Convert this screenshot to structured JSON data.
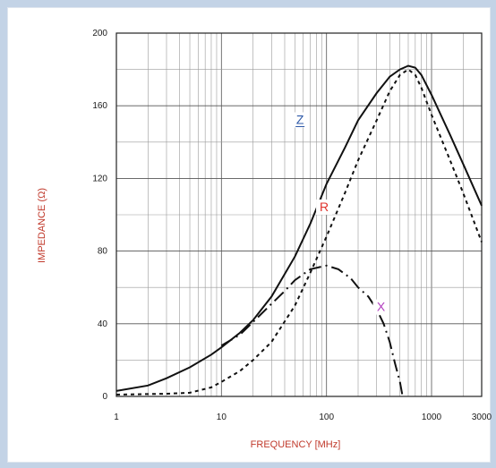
{
  "chart_data": {
    "type": "line",
    "xlabel": "FREQUENCY [MHz]",
    "ylabel": "IMPEDANCE (Ω)",
    "x_scale": "log",
    "xlim": [
      1,
      3000
    ],
    "ylim": [
      0,
      200
    ],
    "x_ticks": [
      "1",
      "10",
      "100",
      "1000",
      "3000"
    ],
    "y_ticks": [
      "0",
      "40",
      "80",
      "120",
      "160",
      "200"
    ],
    "grid": true,
    "series": [
      {
        "name": "Z",
        "style": "solid",
        "color": "#111111",
        "label_color": "#2f5aa8",
        "points": [
          [
            1,
            3
          ],
          [
            2,
            6
          ],
          [
            3,
            10
          ],
          [
            5,
            16
          ],
          [
            8,
            23
          ],
          [
            10,
            27
          ],
          [
            15,
            35
          ],
          [
            20,
            42
          ],
          [
            30,
            55
          ],
          [
            50,
            77
          ],
          [
            70,
            95
          ],
          [
            100,
            117
          ],
          [
            150,
            137
          ],
          [
            200,
            152
          ],
          [
            300,
            167
          ],
          [
            400,
            176
          ],
          [
            500,
            180
          ],
          [
            600,
            182
          ],
          [
            700,
            181
          ],
          [
            800,
            177
          ],
          [
            1000,
            166
          ],
          [
            1500,
            144
          ],
          [
            2000,
            128
          ],
          [
            3000,
            105
          ]
        ]
      },
      {
        "name": "R",
        "style": "dotted",
        "color": "#111111",
        "label_color": "#e0322b",
        "points": [
          [
            1,
            1
          ],
          [
            3,
            1.5
          ],
          [
            5,
            2
          ],
          [
            8,
            5
          ],
          [
            10,
            8
          ],
          [
            15,
            14
          ],
          [
            20,
            20
          ],
          [
            30,
            30
          ],
          [
            50,
            50
          ],
          [
            70,
            68
          ],
          [
            100,
            88
          ],
          [
            150,
            112
          ],
          [
            200,
            130
          ],
          [
            300,
            152
          ],
          [
            400,
            168
          ],
          [
            500,
            177
          ],
          [
            600,
            180
          ],
          [
            700,
            177
          ],
          [
            800,
            170
          ],
          [
            1000,
            155
          ],
          [
            1500,
            130
          ],
          [
            2000,
            112
          ],
          [
            3000,
            85
          ]
        ]
      },
      {
        "name": "X",
        "style": "dashdot",
        "color": "#111111",
        "label_color": "#b23fbf",
        "points": [
          [
            10,
            28
          ],
          [
            15,
            34
          ],
          [
            20,
            41
          ],
          [
            30,
            51
          ],
          [
            40,
            58
          ],
          [
            50,
            64
          ],
          [
            70,
            70
          ],
          [
            100,
            72
          ],
          [
            130,
            70
          ],
          [
            170,
            65
          ],
          [
            200,
            60
          ],
          [
            250,
            55
          ],
          [
            300,
            48
          ],
          [
            350,
            40
          ],
          [
            400,
            30
          ],
          [
            450,
            18
          ],
          [
            500,
            8
          ],
          [
            530,
            0
          ]
        ]
      }
    ]
  }
}
